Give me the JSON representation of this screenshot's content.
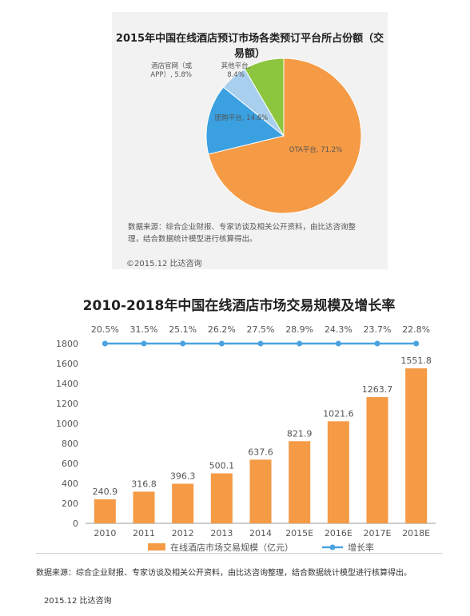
{
  "pie_panel": {
    "title": "2015年中国在线酒店预订市场各类预订平台所占份额（交易额）",
    "source_line1": "数据来源：综合企业财报、专家访谈及相关公开资料，由比达咨询整",
    "source_line2": "理，结合数据统计模型进行核算得出。",
    "copyright": "©2015.12 比达咨询"
  },
  "bar_panel": {
    "title": "2010-2018年中国在线酒店市场交易规模及增长率",
    "source": "数据来源：综合企业财报、专家访谈及相关公开资料，由比达咨询整理，结合数据统计模型进行核算得出。",
    "copyright": "2015.12 比达咨询"
  },
  "colors": {
    "orange": "#f59a45",
    "blue": "#3aa0e0",
    "lightblue": "#a9cfee",
    "green": "#8cc63f",
    "line": "#4aa3df"
  },
  "chart_data": [
    {
      "type": "pie",
      "title": "2015年中国在线酒店预订市场各类预订平台所占份额（交易额）",
      "slices": [
        {
          "label": "OTA平台, 71.2%",
          "value": 71.2,
          "color": "#f59a45"
        },
        {
          "label": "团购平台, 14.6%",
          "value": 14.6,
          "color": "#3aa0e0"
        },
        {
          "label_lines": [
            "酒店官网（或",
            "APP）, 5.8%"
          ],
          "value": 5.8,
          "color": "#a9cfee"
        },
        {
          "label_lines": [
            "其他平台,",
            "8.4%"
          ],
          "value": 8.4,
          "color": "#8cc63f"
        }
      ]
    },
    {
      "type": "bar",
      "title": "2010-2018年中国在线酒店市场交易规模及增长率",
      "categories": [
        "2010",
        "2011",
        "2012",
        "2013",
        "2014",
        "2015E",
        "2016E",
        "2017E",
        "2018E"
      ],
      "values": [
        240.9,
        316.8,
        396.3,
        500.1,
        637.6,
        821.9,
        1021.6,
        1263.7,
        1551.8
      ],
      "value_labels": [
        "240.9",
        "316.8",
        "396.3",
        "500.1",
        "637.6",
        "821.9",
        "1021.6",
        "1263.7",
        "1551.8"
      ],
      "growth_rates": [
        "20.5%",
        "31.5%",
        "25.1%",
        "26.2%",
        "27.5%",
        "28.9%",
        "24.3%",
        "23.7%",
        "22.8%"
      ],
      "yticks": [
        "0",
        "200",
        "400",
        "600",
        "800",
        "1000",
        "1200",
        "1400",
        "1600",
        "1800"
      ],
      "ylim": [
        0,
        1800
      ],
      "legend": [
        "在线酒店市场交易规模（亿元）",
        "增长率"
      ],
      "grid": false,
      "legend_position": "bottom"
    }
  ]
}
